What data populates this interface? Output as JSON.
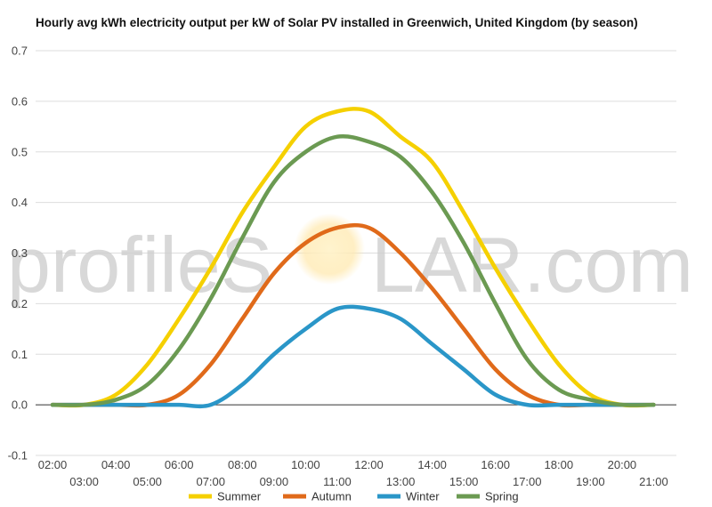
{
  "chart_data": {
    "type": "line",
    "title": "Hourly avg kWh electricity output per kW of Solar PV installed in Greenwich, United Kingdom (by season)",
    "xlabel": "",
    "ylabel": "",
    "x": [
      "02:00",
      "03:00",
      "04:00",
      "05:00",
      "06:00",
      "07:00",
      "08:00",
      "09:00",
      "10:00",
      "11:00",
      "12:00",
      "13:00",
      "14:00",
      "15:00",
      "16:00",
      "17:00",
      "18:00",
      "19:00",
      "20:00",
      "21:00"
    ],
    "ylim": [
      -0.1,
      0.7
    ],
    "yticks": [
      -0.1,
      0.0,
      0.1,
      0.2,
      0.3,
      0.4,
      0.5,
      0.6,
      0.7
    ],
    "ytick_labels": [
      "-0.1",
      "0.0",
      "0.1",
      "0.2",
      "0.3",
      "0.4",
      "0.5",
      "0.6",
      "0.7"
    ],
    "grid": true,
    "legend_position": "bottom",
    "series": [
      {
        "name": "Summer",
        "color": "#f5d000",
        "values": [
          0.0,
          0.0,
          0.02,
          0.08,
          0.17,
          0.27,
          0.38,
          0.47,
          0.55,
          0.58,
          0.58,
          0.53,
          0.48,
          0.38,
          0.27,
          0.17,
          0.08,
          0.02,
          0.0,
          0.0
        ]
      },
      {
        "name": "Autumn",
        "color": "#e06a1a",
        "values": [
          0.0,
          0.0,
          0.0,
          0.0,
          0.02,
          0.08,
          0.17,
          0.26,
          0.32,
          0.35,
          0.35,
          0.3,
          0.23,
          0.15,
          0.07,
          0.02,
          0.0,
          0.0,
          0.0,
          0.0
        ]
      },
      {
        "name": "Winter",
        "color": "#2a96c8",
        "values": [
          0.0,
          0.0,
          0.0,
          0.0,
          0.0,
          0.0,
          0.04,
          0.1,
          0.15,
          0.19,
          0.19,
          0.17,
          0.12,
          0.07,
          0.02,
          0.0,
          0.0,
          0.0,
          0.0,
          0.0
        ]
      },
      {
        "name": "Spring",
        "color": "#6b9a52",
        "values": [
          0.0,
          0.0,
          0.01,
          0.04,
          0.11,
          0.21,
          0.33,
          0.44,
          0.5,
          0.53,
          0.52,
          0.49,
          0.42,
          0.32,
          0.2,
          0.09,
          0.03,
          0.01,
          0.0,
          0.0
        ]
      }
    ]
  },
  "watermark": {
    "text_left": "profileS",
    "text_right": "LAR.com"
  }
}
